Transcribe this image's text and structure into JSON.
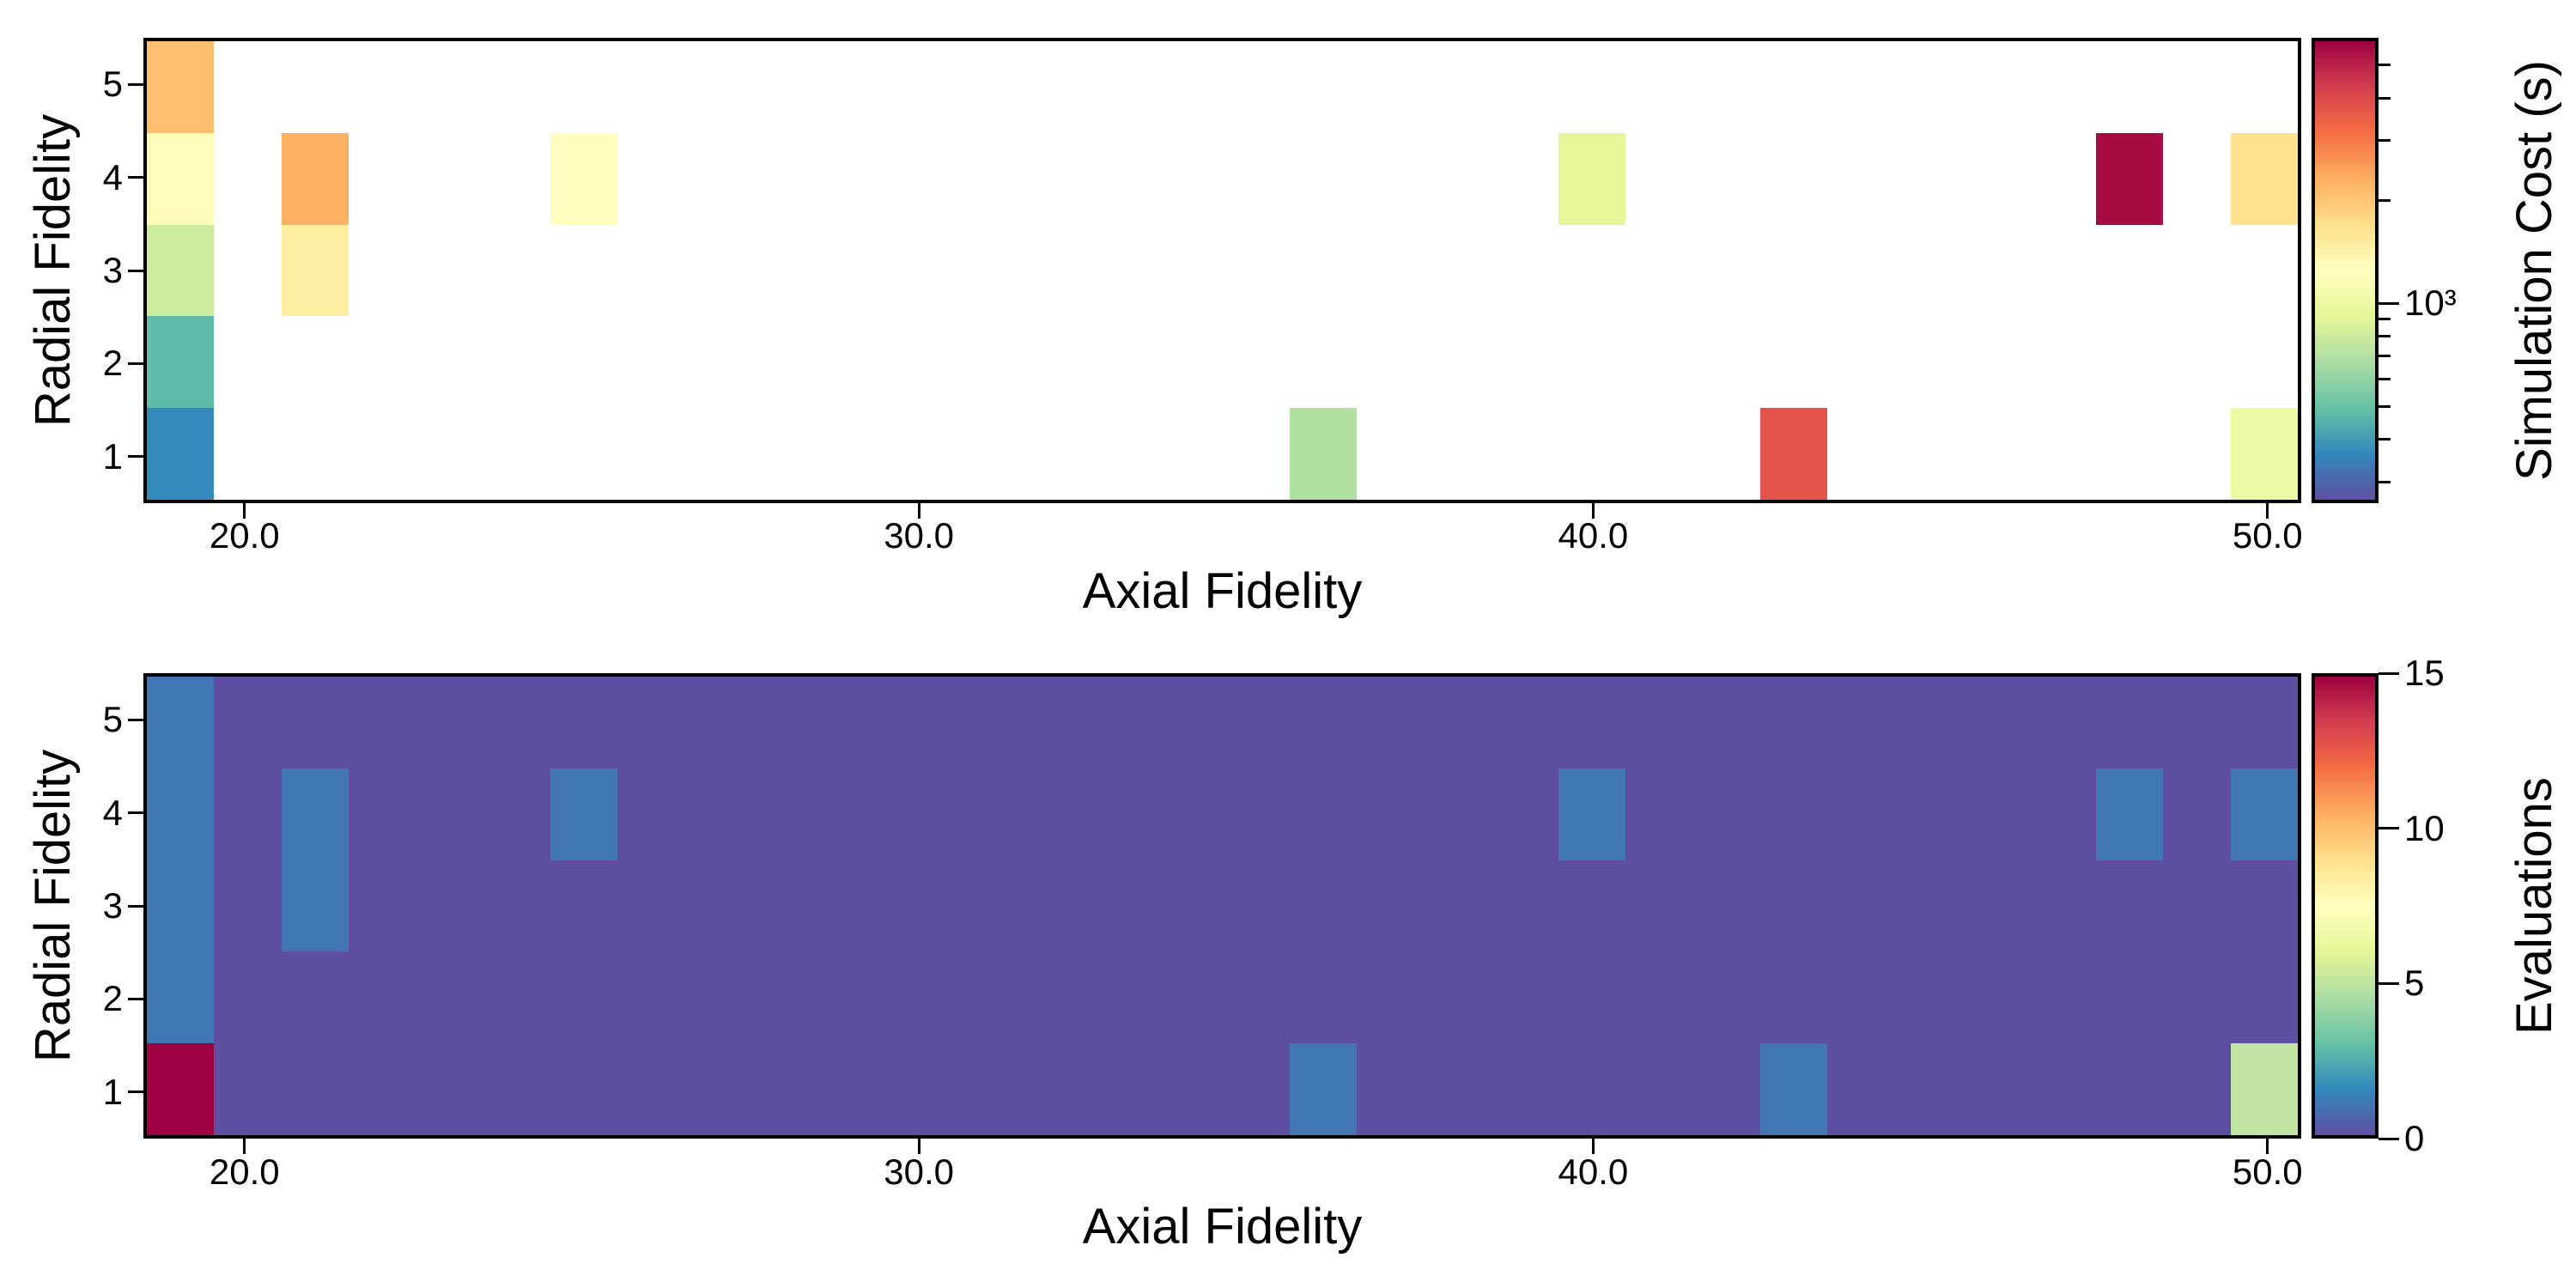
{
  "figure": {
    "background": "#ffffff",
    "text_color": "#000000",
    "colormap": {
      "name": "Spectral_r",
      "stops": [
        "#5e4fa2",
        "#3288bd",
        "#66c2a5",
        "#abdda4",
        "#e6f598",
        "#ffffbf",
        "#fee08b",
        "#fdae61",
        "#f46d43",
        "#d53e4f",
        "#9e0142"
      ]
    }
  },
  "chart_data": [
    {
      "id": "simulation-cost",
      "type": "heatmap",
      "xlabel": "Axial Fidelity",
      "ylabel": "Radial Fidelity",
      "x_range": [
        18.5,
        50.5
      ],
      "y_range": [
        0.5,
        5.5
      ],
      "x_ticks": [
        {
          "value": 20,
          "label": "20.0"
        },
        {
          "value": 30,
          "label": "30.0"
        },
        {
          "value": 40,
          "label": "40.0"
        },
        {
          "value": 50,
          "label": "50.0"
        }
      ],
      "y_ticks": [
        {
          "value": 1,
          "label": "1"
        },
        {
          "value": 2,
          "label": "2"
        },
        {
          "value": 3,
          "label": "3"
        },
        {
          "value": 4,
          "label": "4"
        },
        {
          "value": 5,
          "label": "5"
        }
      ],
      "background_value": null,
      "background_color": "#ffffff",
      "cells": [
        {
          "axial": 19,
          "radial": 1,
          "value": 360
        },
        {
          "axial": 19,
          "radial": 2,
          "value": 470
        },
        {
          "axial": 19,
          "radial": 3,
          "value": 800
        },
        {
          "axial": 19,
          "radial": 4,
          "value": 1300
        },
        {
          "axial": 19,
          "radial": 5,
          "value": 2100
        },
        {
          "axial": 21,
          "radial": 3,
          "value": 1500
        },
        {
          "axial": 21,
          "radial": 4,
          "value": 2300
        },
        {
          "axial": 25,
          "radial": 4,
          "value": 1260
        },
        {
          "axial": 36,
          "radial": 1,
          "value": 690
        },
        {
          "axial": 40,
          "radial": 4,
          "value": 910
        },
        {
          "axial": 43,
          "radial": 1,
          "value": 3800
        },
        {
          "axial": 48,
          "radial": 4,
          "value": 5700
        },
        {
          "axial": 50,
          "radial": 1,
          "value": 1000
        },
        {
          "axial": 50,
          "radial": 4,
          "value": 1700
        }
      ],
      "colorbar": {
        "label": "Simulation Cost (s)",
        "scale": "log",
        "vmin": 260,
        "vmax": 6000,
        "major_ticks": [
          {
            "value": 1000,
            "label": "10³"
          }
        ],
        "minor_ticks": [
          5000,
          4000,
          3000,
          2000,
          900,
          800,
          700,
          600,
          500,
          400,
          300
        ]
      }
    },
    {
      "id": "evaluations",
      "type": "heatmap",
      "xlabel": "Axial Fidelity",
      "ylabel": "Radial Fidelity",
      "x_range": [
        18.5,
        50.5
      ],
      "y_range": [
        0.5,
        5.5
      ],
      "x_ticks": [
        {
          "value": 20,
          "label": "20.0"
        },
        {
          "value": 30,
          "label": "30.0"
        },
        {
          "value": 40,
          "label": "40.0"
        },
        {
          "value": 50,
          "label": "50.0"
        }
      ],
      "y_ticks": [
        {
          "value": 1,
          "label": "1"
        },
        {
          "value": 2,
          "label": "2"
        },
        {
          "value": 3,
          "label": "3"
        },
        {
          "value": 4,
          "label": "4"
        },
        {
          "value": 5,
          "label": "5"
        }
      ],
      "background_value": 0,
      "background_color": "#5e4fa2",
      "cells": [
        {
          "axial": 19,
          "radial": 1,
          "value": 15
        },
        {
          "axial": 19,
          "radial": 2,
          "value": 1
        },
        {
          "axial": 19,
          "radial": 3,
          "value": 1
        },
        {
          "axial": 19,
          "radial": 4,
          "value": 1
        },
        {
          "axial": 19,
          "radial": 5,
          "value": 1
        },
        {
          "axial": 21,
          "radial": 3,
          "value": 1
        },
        {
          "axial": 21,
          "radial": 4,
          "value": 1
        },
        {
          "axial": 25,
          "radial": 4,
          "value": 1
        },
        {
          "axial": 36,
          "radial": 1,
          "value": 1
        },
        {
          "axial": 40,
          "radial": 4,
          "value": 1
        },
        {
          "axial": 43,
          "radial": 1,
          "value": 1
        },
        {
          "axial": 48,
          "radial": 4,
          "value": 1
        },
        {
          "axial": 50,
          "radial": 1,
          "value": 5
        },
        {
          "axial": 50,
          "radial": 4,
          "value": 1
        }
      ],
      "colorbar": {
        "label": "Evaluations",
        "scale": "linear",
        "vmin": 0,
        "vmax": 15,
        "major_ticks": [
          {
            "value": 15,
            "label": "15"
          },
          {
            "value": 10,
            "label": "10"
          },
          {
            "value": 5,
            "label": "5"
          },
          {
            "value": 0,
            "label": "0"
          }
        ],
        "minor_ticks": []
      }
    }
  ]
}
